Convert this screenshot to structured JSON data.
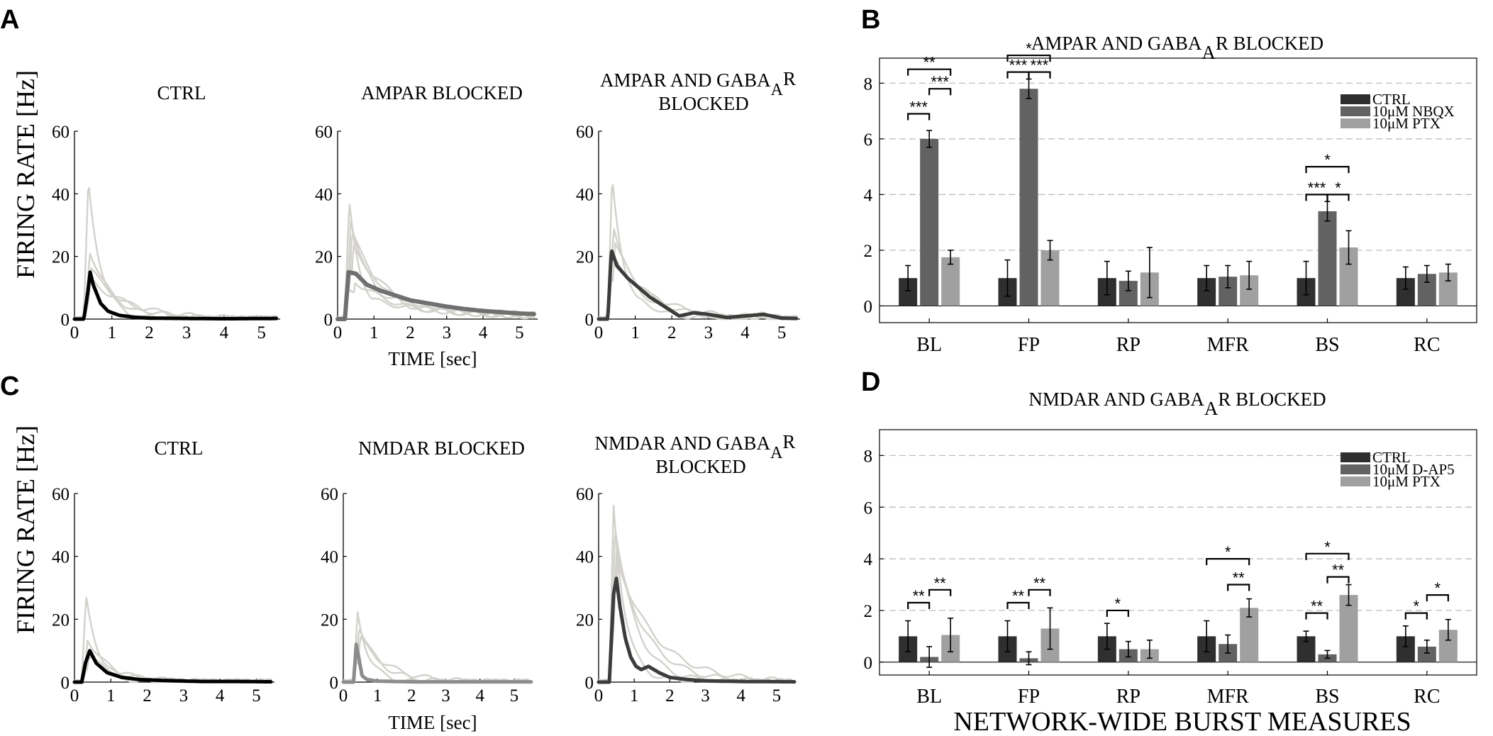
{
  "figure": {
    "panel_labels": [
      "A",
      "B",
      "C",
      "D"
    ],
    "ylabel": "FIRING RATE [Hz]",
    "xlabel": "TIME [sec]",
    "bottom_label": "NETWORK-WIDE BURST MEASURES"
  },
  "colors": {
    "ctrl": "#2f2f2f",
    "drug": "#626262",
    "ptx": "#a0a0a0",
    "trace_light": "#d3d1cc",
    "grid": "#b8b8b8"
  },
  "chart_data": [
    {
      "id": "A1",
      "type": "line",
      "title": "CTRL",
      "xlim": [
        0,
        5.5
      ],
      "ylim": [
        0,
        60
      ],
      "xticks": [
        "0",
        "1",
        "2",
        "3",
        "4",
        "5"
      ],
      "yticks": [
        "0",
        "20",
        "40",
        "60"
      ],
      "mean_color": "#000000",
      "mean_width": 5,
      "light_peaks": [
        44,
        22,
        16,
        12
      ],
      "mean_series": {
        "name": "mean",
        "x": [
          0,
          0.25,
          0.35,
          0.42,
          0.5,
          0.7,
          0.9,
          1.2,
          1.6,
          2,
          3,
          4,
          5.4
        ],
        "y": [
          0,
          0,
          8,
          15,
          11,
          5,
          2.5,
          1.2,
          0.6,
          0.3,
          0.2,
          0.1,
          0.2
        ]
      }
    },
    {
      "id": "A2",
      "type": "line",
      "title": "AMPAR BLOCKED",
      "xlim": [
        0,
        5.5
      ],
      "ylim": [
        0,
        60
      ],
      "xticks": [
        "0",
        "1",
        "2",
        "3",
        "4",
        "5"
      ],
      "yticks": [
        "0",
        "20",
        "40",
        "60"
      ],
      "mean_color": "#707070",
      "mean_width": 6,
      "light_peaks": [
        37,
        32,
        28,
        23,
        12
      ],
      "mean_series": {
        "name": "mean",
        "x": [
          0,
          0.2,
          0.3,
          0.5,
          0.8,
          1.2,
          1.6,
          2,
          2.5,
          3,
          3.5,
          4,
          4.5,
          5,
          5.4
        ],
        "y": [
          0,
          0,
          15,
          14.5,
          11,
          9,
          7.5,
          6,
          5,
          4,
          3.2,
          2.6,
          2.2,
          1.8,
          1.6
        ]
      }
    },
    {
      "id": "A3",
      "type": "line",
      "title": "AMPAR AND GABA_A R BLOCKED",
      "title_line1": "AMPAR AND GABA",
      "title_sub": "A",
      "title_sup": "R",
      "title_line2": "BLOCKED",
      "xlim": [
        0,
        5.5
      ],
      "ylim": [
        0,
        60
      ],
      "xticks": [
        "0",
        "1",
        "2",
        "3",
        "4",
        "5"
      ],
      "yticks": [
        "0",
        "20",
        "40",
        "60"
      ],
      "mean_color": "#3c3c3c",
      "mean_width": 5,
      "light_peaks": [
        45,
        30,
        24,
        18
      ],
      "mean_series": {
        "name": "mean",
        "x": [
          0,
          0.25,
          0.35,
          0.5,
          0.8,
          1.1,
          1.4,
          1.8,
          2.2,
          2.6,
          3,
          3.5,
          4,
          4.5,
          5,
          5.4
        ],
        "y": [
          0,
          0,
          22,
          17,
          13,
          10,
          7,
          4,
          1,
          2,
          1.5,
          0.5,
          1,
          1.5,
          0.3,
          0.2
        ]
      }
    },
    {
      "id": "C1",
      "type": "line",
      "title": "CTRL",
      "xlim": [
        0,
        5.5
      ],
      "ylim": [
        0,
        60
      ],
      "xticks": [
        "0",
        "1",
        "2",
        "3",
        "4",
        "5"
      ],
      "yticks": [
        "0",
        "20",
        "40",
        "60"
      ],
      "mean_color": "#000000",
      "mean_width": 5,
      "light_peaks": [
        27,
        14,
        8
      ],
      "mean_series": {
        "name": "mean",
        "x": [
          0,
          0.2,
          0.3,
          0.42,
          0.6,
          0.9,
          1.3,
          1.8,
          2.5,
          3.5,
          4.5,
          5.4
        ],
        "y": [
          0,
          0,
          6,
          10,
          6,
          3,
          1.5,
          0.8,
          0.5,
          0.2,
          0.2,
          0.1
        ]
      }
    },
    {
      "id": "C2",
      "type": "line",
      "title": "NMDAR BLOCKED",
      "xlim": [
        0,
        5.5
      ],
      "ylim": [
        0,
        60
      ],
      "xticks": [
        "0",
        "1",
        "2",
        "3",
        "4",
        "5"
      ],
      "yticks": [
        "0",
        "20",
        "40",
        "60"
      ],
      "mean_color": "#8c8c8c",
      "mean_width": 5,
      "light_peaks": [
        22,
        18,
        14
      ],
      "mean_series": {
        "name": "mean",
        "x": [
          0,
          0.3,
          0.38,
          0.45,
          0.55,
          0.7,
          1,
          2,
          3,
          4,
          5,
          5.5
        ],
        "y": [
          0,
          0,
          12,
          8,
          2,
          0.8,
          0.3,
          0.1,
          0.1,
          0.1,
          0.1,
          0.1
        ]
      }
    },
    {
      "id": "C3",
      "type": "line",
      "title": "NMDAR AND GABA_A R BLOCKED",
      "title_line1": "NMDAR AND GABA",
      "title_sub": "A",
      "title_sup": "R",
      "title_line2": "BLOCKED",
      "xlim": [
        0,
        5.5
      ],
      "ylim": [
        0,
        60
      ],
      "xticks": [
        "0",
        "1",
        "2",
        "3",
        "4",
        "5"
      ],
      "yticks": [
        "0",
        "20",
        "40",
        "60"
      ],
      "mean_color": "#3c3c3c",
      "mean_width": 5,
      "light_peaks": [
        56,
        50,
        42,
        38
      ],
      "mean_series": {
        "name": "mean",
        "x": [
          0,
          0.3,
          0.42,
          0.5,
          0.6,
          0.75,
          0.9,
          1.05,
          1.2,
          1.4,
          1.7,
          2,
          2.5,
          3,
          4,
          5.5
        ],
        "y": [
          0,
          0,
          28,
          33,
          24,
          14,
          8,
          5,
          4,
          5,
          3,
          1.5,
          0.8,
          0.4,
          0.2,
          0.1
        ]
      }
    },
    {
      "id": "B",
      "type": "bar",
      "title": "AMPAR AND GABA_A R BLOCKED",
      "title_main": "AMPAR AND GABA",
      "title_sub": "A",
      "title_end": "R BLOCKED",
      "categories": [
        "BL",
        "FP",
        "RP",
        "MFR",
        "BS",
        "RC"
      ],
      "ylim": [
        -0.6,
        8.9
      ],
      "yticks": [
        "0",
        "2",
        "4",
        "6",
        "8"
      ],
      "series": [
        {
          "name": "CTRL",
          "values": [
            1.0,
            1.0,
            1.0,
            1.0,
            1.0,
            1.0
          ],
          "errors": [
            0.45,
            0.65,
            0.6,
            0.45,
            0.6,
            0.4
          ]
        },
        {
          "name": "10μM NBQX",
          "values": [
            6.0,
            7.8,
            0.9,
            1.05,
            3.4,
            1.15
          ],
          "errors": [
            0.3,
            0.35,
            0.35,
            0.4,
            0.35,
            0.3
          ]
        },
        {
          "name": "10μM PTX",
          "values": [
            1.75,
            2.0,
            1.2,
            1.1,
            2.1,
            1.2
          ],
          "errors": [
            0.25,
            0.35,
            0.9,
            0.5,
            0.6,
            0.3
          ]
        }
      ],
      "significance": [
        {
          "cat": 0,
          "from": 0,
          "to": 1,
          "label": "***",
          "y": 6.9
        },
        {
          "cat": 0,
          "from": 1,
          "to": 2,
          "label": "***",
          "y": 7.8
        },
        {
          "cat": 0,
          "from": 0,
          "to": 2,
          "label": "**",
          "y": 8.5
        },
        {
          "cat": 1,
          "from": 0,
          "to": 1,
          "label": "***",
          "y": 8.4
        },
        {
          "cat": 1,
          "from": 1,
          "to": 2,
          "label": "***",
          "y": 8.4
        },
        {
          "cat": 1,
          "from": 0,
          "to": 2,
          "label": "*",
          "y": 9.0
        },
        {
          "cat": 4,
          "from": 0,
          "to": 1,
          "label": "***",
          "y": 4.0
        },
        {
          "cat": 4,
          "from": 1,
          "to": 2,
          "label": "*",
          "y": 4.0
        },
        {
          "cat": 4,
          "from": 0,
          "to": 2,
          "label": "*",
          "y": 5.0
        }
      ],
      "legend": "top-right"
    },
    {
      "id": "D",
      "type": "bar",
      "title": "NMDAR AND GABA_A R BLOCKED",
      "title_main": "NMDAR AND GABA",
      "title_sub": "A",
      "title_end": "R BLOCKED",
      "categories": [
        "BL",
        "FP",
        "RP",
        "MFR",
        "BS",
        "RC"
      ],
      "ylim": [
        -0.5,
        9.0
      ],
      "yticks": [
        "0",
        "2",
        "4",
        "6",
        "8"
      ],
      "series": [
        {
          "name": "CTRL",
          "values": [
            1.0,
            1.0,
            1.0,
            1.0,
            1.0,
            1.0
          ],
          "errors": [
            0.6,
            0.6,
            0.5,
            0.6,
            0.2,
            0.4
          ]
        },
        {
          "name": "10μM D-AP5",
          "values": [
            0.2,
            0.15,
            0.5,
            0.7,
            0.3,
            0.6
          ],
          "errors": [
            0.4,
            0.25,
            0.3,
            0.35,
            0.15,
            0.25
          ]
        },
        {
          "name": "10μM PTX",
          "values": [
            1.05,
            1.3,
            0.5,
            2.1,
            2.6,
            1.25
          ],
          "errors": [
            0.65,
            0.8,
            0.35,
            0.35,
            0.4,
            0.4
          ]
        }
      ],
      "significance": [
        {
          "cat": 0,
          "from": 0,
          "to": 1,
          "label": "**",
          "y": 2.3
        },
        {
          "cat": 0,
          "from": 1,
          "to": 2,
          "label": "**",
          "y": 2.8
        },
        {
          "cat": 1,
          "from": 0,
          "to": 1,
          "label": "**",
          "y": 2.3
        },
        {
          "cat": 1,
          "from": 1,
          "to": 2,
          "label": "**",
          "y": 2.8
        },
        {
          "cat": 2,
          "from": 0,
          "to": 1,
          "label": "*",
          "y": 2.0
        },
        {
          "cat": 3,
          "from": 1,
          "to": 2,
          "label": "**",
          "y": 3.0
        },
        {
          "cat": 3,
          "from": 0,
          "to": 2,
          "label": "*",
          "y": 4.0
        },
        {
          "cat": 4,
          "from": 0,
          "to": 1,
          "label": "**",
          "y": 1.9
        },
        {
          "cat": 4,
          "from": 1,
          "to": 2,
          "label": "**",
          "y": 3.3
        },
        {
          "cat": 4,
          "from": 0,
          "to": 2,
          "label": "*",
          "y": 4.2
        },
        {
          "cat": 5,
          "from": 0,
          "to": 1,
          "label": "*",
          "y": 1.9
        },
        {
          "cat": 5,
          "from": 1,
          "to": 2,
          "label": "*",
          "y": 2.6
        }
      ],
      "legend": "top-right"
    }
  ]
}
